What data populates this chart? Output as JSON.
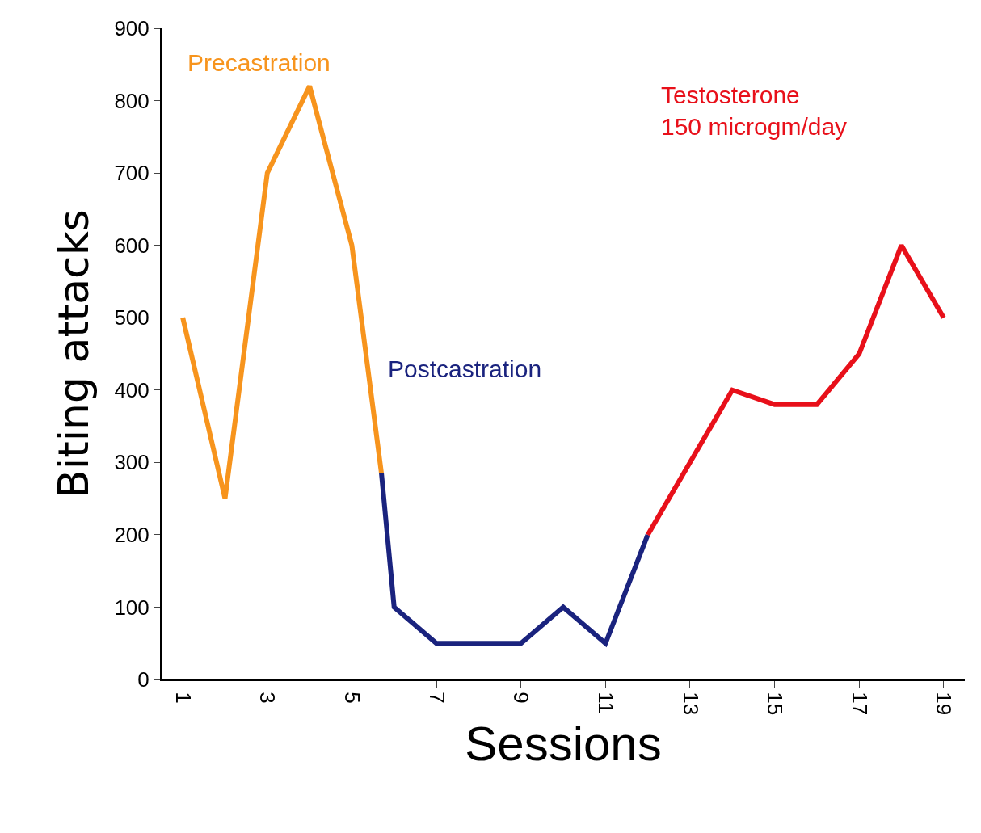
{
  "chart_data": {
    "type": "line",
    "xlabel": "Sessions",
    "ylabel": "Biting attacks",
    "series": [
      {
        "color": "#f7941d",
        "x": [
          1,
          2,
          3,
          4,
          5,
          5.7
        ],
        "values": [
          500,
          250,
          700,
          820,
          600,
          285
        ]
      },
      {
        "color": "#1a237e",
        "x": [
          5.7,
          6,
          7,
          8,
          9,
          10,
          11,
          12
        ],
        "values": [
          285,
          100,
          50,
          50,
          50,
          100,
          50,
          200
        ]
      },
      {
        "color": "#e8101a",
        "x": [
          12,
          13,
          14,
          15,
          16,
          17,
          18,
          19
        ],
        "values": [
          200,
          300,
          400,
          380,
          380,
          450,
          600,
          500
        ]
      }
    ],
    "annotations": [
      "Precastration",
      "Postcastration",
      "Testosterone\n150 microgm/day"
    ],
    "xlim": [
      0.5,
      19.5
    ],
    "xticks": [
      1,
      3,
      5,
      7,
      9,
      11,
      13,
      15,
      17,
      19
    ],
    "ylim": [
      0,
      900
    ],
    "yticks": [
      0,
      100,
      200,
      300,
      400,
      500,
      600,
      700,
      800,
      900
    ],
    "marker": "none",
    "line_style": "solid"
  }
}
